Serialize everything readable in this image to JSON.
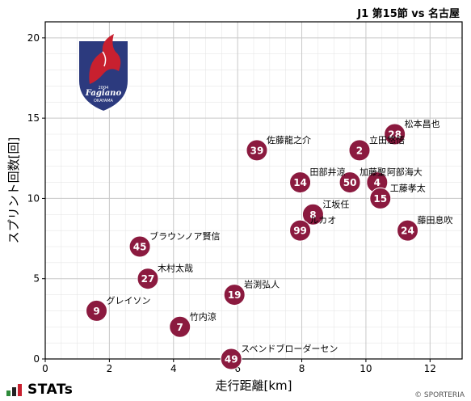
{
  "header": {
    "title": "J1 第15節 vs 名古屋"
  },
  "footer": {
    "brand": "STATs",
    "credit": "© SPORTERIA"
  },
  "logo": {
    "text": "Fagiano",
    "subtext": "OKAYAMA",
    "year": "2004"
  },
  "colors": {
    "marker": "#8b1a3f",
    "marker_edge": "#ffffff",
    "grid": "#c8c8c8",
    "text": "#000000",
    "logo_navy": "#2c3a7e",
    "logo_red": "#c8202f"
  },
  "chart_data": {
    "type": "scatter",
    "xlabel": "走行距離[km]",
    "ylabel": "スプリント回数[回]",
    "xlim": [
      0,
      13
    ],
    "ylim": [
      0,
      21
    ],
    "xticks": [
      "0",
      "2",
      "4",
      "6",
      "8",
      "10",
      "12"
    ],
    "yticks": [
      "0",
      "5",
      "10",
      "15",
      "20"
    ],
    "grid": true,
    "points": [
      {
        "number": "28",
        "name": "松本昌也",
        "x": 10.9,
        "y": 14
      },
      {
        "number": "39",
        "name": "佐藤龍之介",
        "x": 6.6,
        "y": 13
      },
      {
        "number": "2",
        "name": "立田悠悟",
        "x": 9.8,
        "y": 13
      },
      {
        "number": "14",
        "name": "田部井涼",
        "x": 7.95,
        "y": 11
      },
      {
        "number": "50",
        "name": "加藤聖",
        "x": 9.5,
        "y": 11
      },
      {
        "number": "4",
        "name": "阿部海大",
        "x": 10.35,
        "y": 11
      },
      {
        "number": "15",
        "name": "工藤孝太",
        "x": 10.45,
        "y": 10
      },
      {
        "number": "8",
        "name": "江坂任",
        "x": 8.35,
        "y": 9
      },
      {
        "number": "99",
        "name": "ルカオ",
        "x": 7.95,
        "y": 8
      },
      {
        "number": "24",
        "name": "藤田息吹",
        "x": 11.3,
        "y": 8
      },
      {
        "number": "45",
        "name": "ブラウンノア賢信",
        "x": 2.95,
        "y": 7
      },
      {
        "number": "27",
        "name": "木村太哉",
        "x": 3.2,
        "y": 5
      },
      {
        "number": "19",
        "name": "岩渕弘人",
        "x": 5.9,
        "y": 4
      },
      {
        "number": "9",
        "name": "グレイソン",
        "x": 1.6,
        "y": 3
      },
      {
        "number": "7",
        "name": "竹内涼",
        "x": 4.2,
        "y": 2
      },
      {
        "number": "49",
        "name": "スベンドブローダーセン",
        "x": 5.8,
        "y": 0
      }
    ]
  }
}
